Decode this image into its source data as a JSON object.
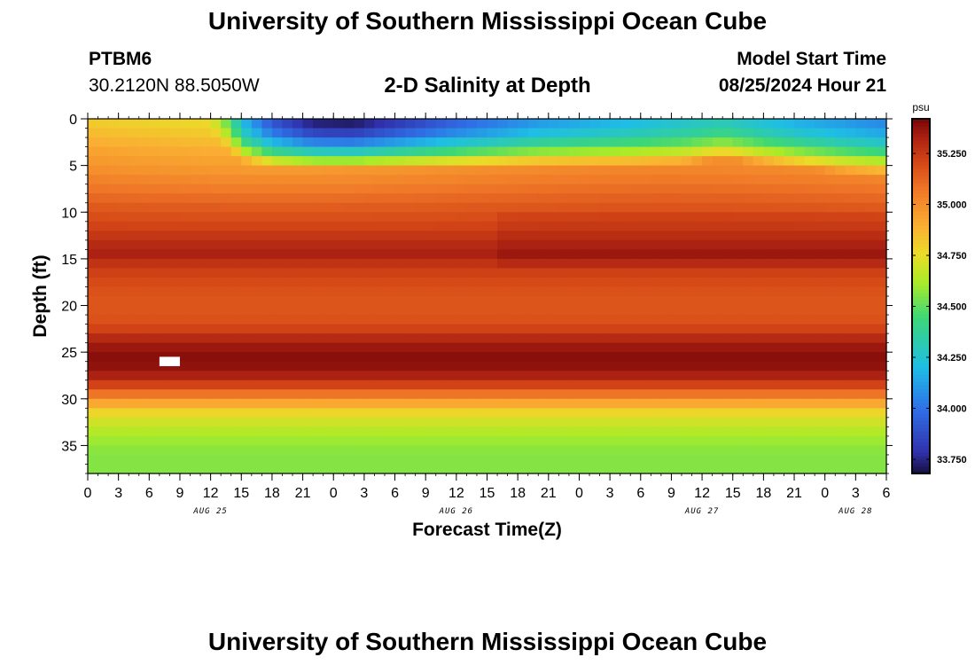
{
  "page": {
    "title": "University of Southern Mississippi Ocean Cube",
    "footer_title": "University of Southern Mississippi Ocean Cube"
  },
  "station": {
    "id": "PTBM6",
    "coords": "30.2120N  88.5050W"
  },
  "model_start": {
    "label": "Model Start Time",
    "time": "08/25/2024 Hour 21"
  },
  "chart_data": {
    "type": "heatmap",
    "title": "2-D Salinity at Depth",
    "xlabel": "Forecast Time(Z)",
    "ylabel": "Depth (ft)",
    "x_ticks": [
      "0",
      "3",
      "6",
      "9",
      "12",
      "15",
      "18",
      "21",
      "0",
      "3",
      "6",
      "9",
      "12",
      "15",
      "18",
      "21",
      "0",
      "3",
      "6",
      "9",
      "12",
      "15",
      "18",
      "21",
      "0",
      "3",
      "6"
    ],
    "x_hours_range": [
      0,
      78
    ],
    "day_labels": [
      {
        "label": "AUG 25",
        "hour": 12
      },
      {
        "label": "AUG 26",
        "hour": 36
      },
      {
        "label": "AUG 27",
        "hour": 60
      },
      {
        "label": "AUG 28",
        "hour": 75
      }
    ],
    "y_ticks": [
      0,
      5,
      10,
      15,
      20,
      25,
      30,
      35
    ],
    "y_range_ft": [
      0,
      38
    ],
    "colorbar": {
      "unit": "psu",
      "range": [
        33.68,
        35.42
      ],
      "ticks": [
        "35.250",
        "35.000",
        "34.750",
        "34.500",
        "34.250",
        "34.000",
        "33.750"
      ],
      "tick_values": [
        35.25,
        35.0,
        34.75,
        34.5,
        34.25,
        34.0,
        33.75
      ]
    },
    "profile_depths_ft": [
      0,
      1,
      2,
      3,
      4,
      5,
      6,
      7,
      8,
      9,
      10,
      11,
      12,
      13,
      14,
      15,
      16,
      17,
      18,
      19,
      20,
      21,
      22,
      23,
      24,
      25,
      26,
      27,
      28,
      29,
      30,
      31,
      32,
      33,
      34,
      35,
      36,
      37
    ],
    "profile_psu": [
      34.82,
      34.86,
      34.9,
      34.94,
      34.97,
      35.0,
      35.04,
      35.08,
      35.12,
      35.16,
      35.19,
      35.22,
      35.26,
      35.3,
      35.33,
      35.27,
      35.23,
      35.2,
      35.18,
      35.17,
      35.17,
      35.18,
      35.22,
      35.3,
      35.36,
      35.39,
      35.38,
      35.33,
      35.22,
      35.08,
      34.92,
      34.78,
      34.7,
      34.64,
      34.6,
      34.57,
      34.56,
      34.56
    ],
    "fresh_layer": {
      "start_hour": 12,
      "hours": [
        14,
        18,
        22,
        26,
        30,
        36,
        44,
        52,
        58,
        62,
        66,
        70,
        74,
        78
      ],
      "surface_psu": [
        34.3,
        33.9,
        33.72,
        33.7,
        33.8,
        33.95,
        34.1,
        34.18,
        34.25,
        34.3,
        34.22,
        34.15,
        34.1,
        34.05
      ],
      "depth_ft": [
        2.8,
        3.8,
        4.0,
        4.0,
        3.9,
        3.8,
        3.6,
        3.6,
        3.5,
        2.8,
        3.4,
        3.9,
        4.3,
        4.5
      ]
    },
    "missing_cell": {
      "hour": 8,
      "depth_ft": 26
    }
  }
}
